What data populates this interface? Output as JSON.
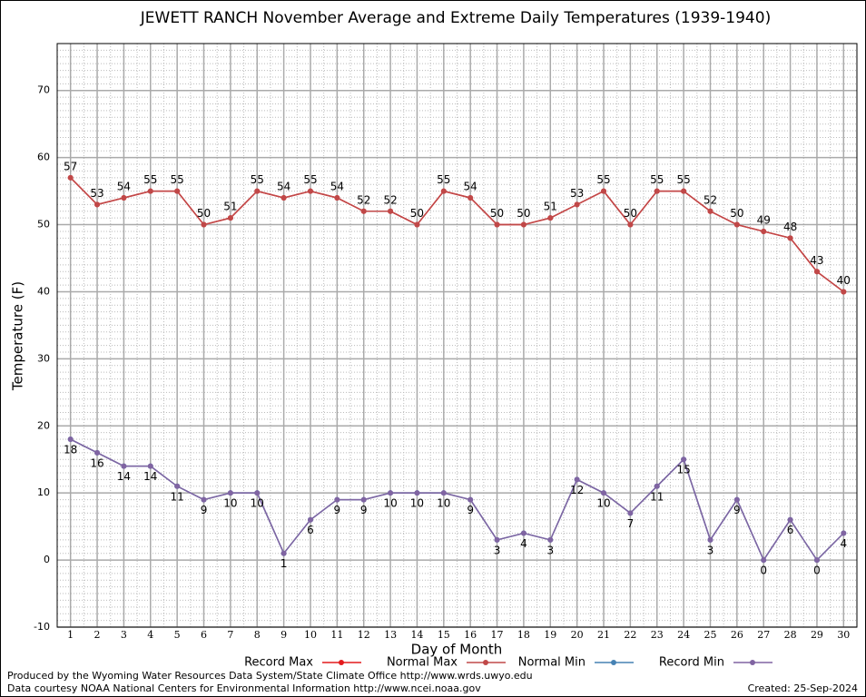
{
  "chart_data": {
    "type": "line",
    "title": "JEWETT RANCH November Average and Extreme Daily Temperatures (1939-1940)",
    "xlabel": "Day of Month",
    "ylabel": "Temperature (F)",
    "x": [
      1,
      2,
      3,
      4,
      5,
      6,
      7,
      8,
      9,
      10,
      11,
      12,
      13,
      14,
      15,
      16,
      17,
      18,
      19,
      20,
      21,
      22,
      23,
      24,
      25,
      26,
      27,
      28,
      29,
      30
    ],
    "xlim": [
      0.5,
      30.5
    ],
    "xticks": [
      1,
      2,
      3,
      4,
      5,
      6,
      7,
      8,
      9,
      10,
      11,
      12,
      13,
      14,
      15,
      16,
      17,
      18,
      19,
      20,
      21,
      22,
      23,
      24,
      25,
      26,
      27,
      28,
      29,
      30
    ],
    "ylim": [
      -10,
      77
    ],
    "yticks": [
      -10,
      0,
      10,
      20,
      30,
      40,
      50,
      60,
      70
    ],
    "grid": true,
    "legend": "bottom",
    "series": [
      {
        "name": "Record Max",
        "color": "#e41a1c",
        "values": [
          57,
          53,
          54,
          55,
          55,
          50,
          51,
          55,
          54,
          55,
          54,
          52,
          52,
          50,
          55,
          54,
          50,
          50,
          51,
          53,
          55,
          50,
          55,
          55,
          52,
          50,
          49,
          48,
          43,
          40
        ]
      },
      {
        "name": "Normal Max",
        "color": "#c04848",
        "values": [
          57,
          53,
          54,
          55,
          55,
          50,
          51,
          55,
          54,
          55,
          54,
          52,
          52,
          50,
          55,
          54,
          50,
          50,
          51,
          53,
          55,
          50,
          55,
          55,
          52,
          50,
          49,
          48,
          43,
          40
        ]
      },
      {
        "name": "Normal Min",
        "color": "#4682b4",
        "values": [
          18,
          16,
          14,
          14,
          11,
          9,
          10,
          10,
          1,
          6,
          9,
          9,
          10,
          10,
          10,
          9,
          3,
          4,
          3,
          12,
          10,
          7,
          11,
          15,
          3,
          9,
          0,
          6,
          0,
          4
        ]
      },
      {
        "name": "Record Min",
        "color": "#8064a2",
        "values": [
          18,
          16,
          14,
          14,
          11,
          9,
          10,
          10,
          1,
          6,
          9,
          9,
          10,
          10,
          10,
          9,
          3,
          4,
          3,
          12,
          10,
          7,
          11,
          15,
          3,
          9,
          0,
          6,
          0,
          4
        ]
      }
    ],
    "footer_left": [
      "Produced by the Wyoming Water Resources Data System/State Climate Office http://www.wrds.uwyo.edu",
      "Data courtesy NOAA National Centers for Environmental Information http://www.ncei.noaa.gov"
    ],
    "footer_right": "Created:  25-Sep-2024"
  }
}
